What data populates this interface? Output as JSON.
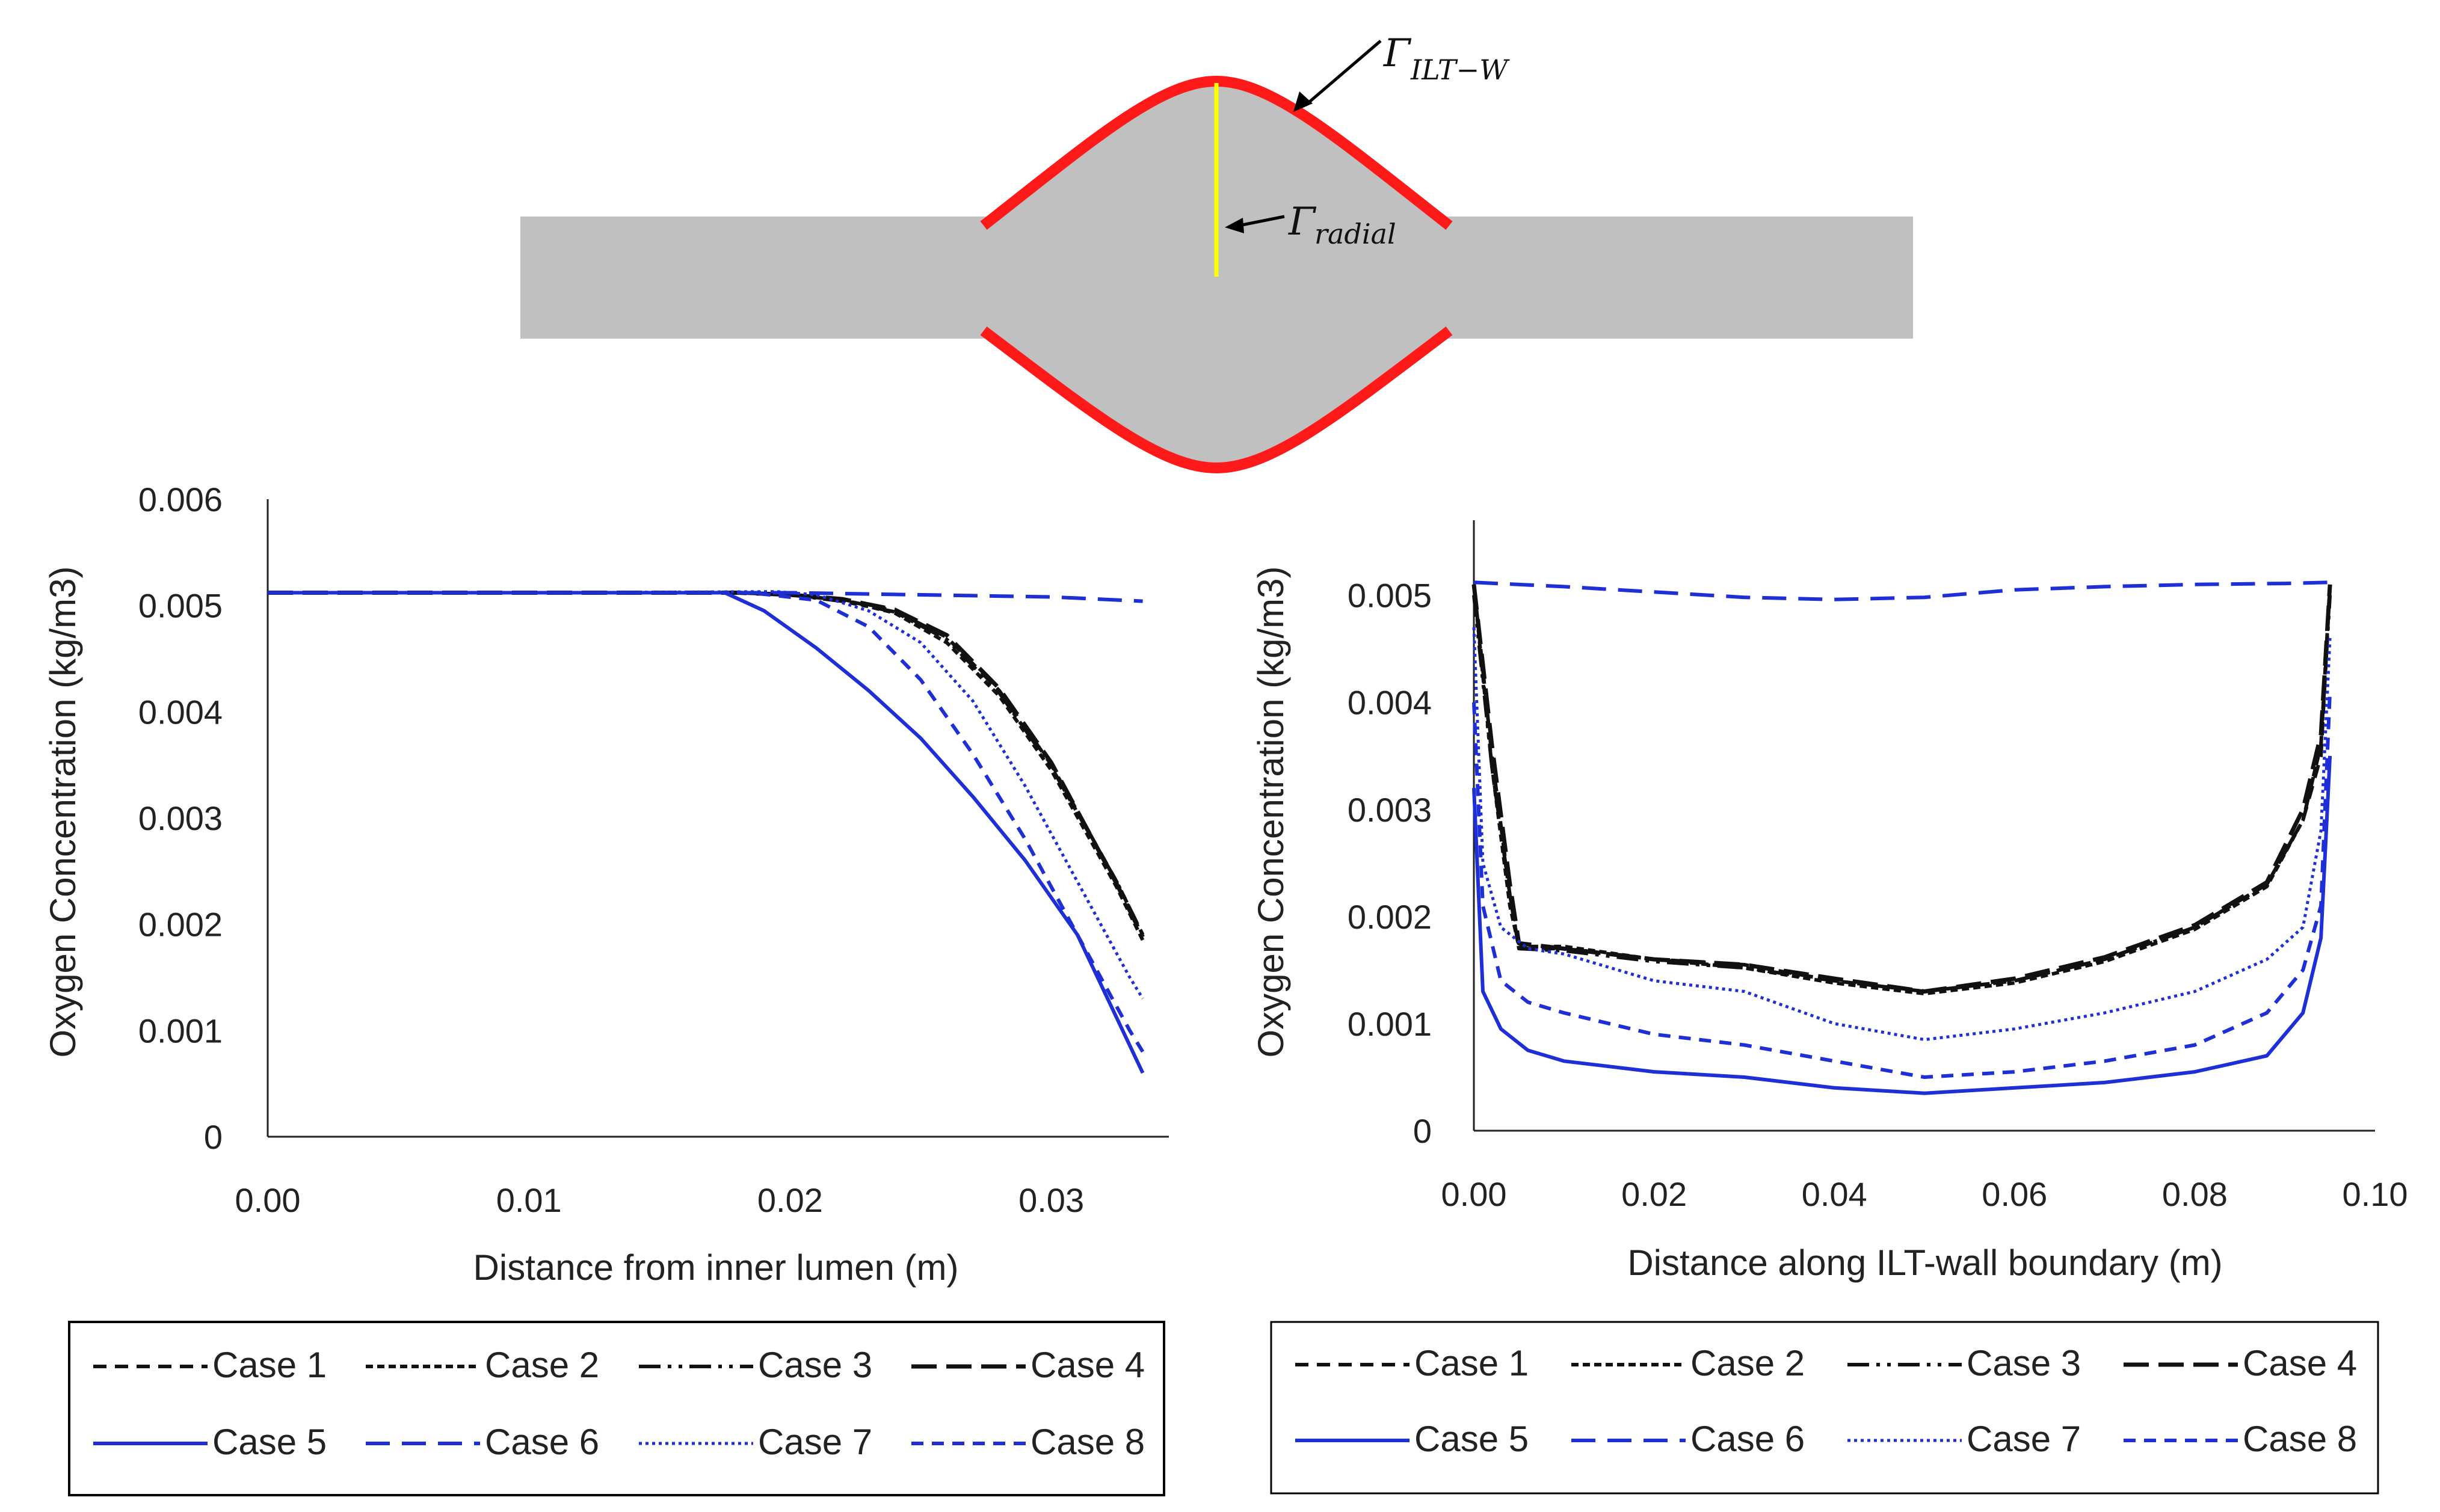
{
  "diagram": {
    "label_wall": {
      "symbol": "Γ",
      "subscript": "ILT−W"
    },
    "label_radial": {
      "symbol": "Γ",
      "subscript": "radial"
    },
    "colors": {
      "body": "#c0c0c0",
      "wall": "#ff1a1a",
      "radial": "#ffff00"
    }
  },
  "chart_data": [
    {
      "type": "line",
      "title": "",
      "xlabel": "Distance from inner lumen (m)",
      "ylabel": "Oxygen Concentration (kg/m3)",
      "xlim": [
        0,
        0.0345
      ],
      "ylim": [
        0,
        0.006
      ],
      "xticks": [
        "0.00",
        "0.01",
        "0.02",
        "0.03"
      ],
      "xtick_values": [
        0,
        0.01,
        0.02,
        0.03
      ],
      "yticks": [
        "0",
        "0.001",
        "0.002",
        "0.003",
        "0.004",
        "0.005",
        "0.006"
      ],
      "ytick_values": [
        0,
        0.001,
        0.002,
        0.003,
        0.004,
        0.005,
        0.006
      ],
      "series": [
        {
          "name": "Case 1",
          "x": [
            0,
            0.01,
            0.018,
            0.02,
            0.022,
            0.024,
            0.026,
            0.028,
            0.03,
            0.0325,
            0.0335
          ],
          "values": [
            0.00512,
            0.00512,
            0.00512,
            0.0051,
            0.00505,
            0.00495,
            0.0047,
            0.0042,
            0.0035,
            0.0024,
            0.0019
          ]
        },
        {
          "name": "Case 2",
          "x": [
            0,
            0.01,
            0.018,
            0.02,
            0.022,
            0.024,
            0.026,
            0.028,
            0.03,
            0.0325,
            0.0335
          ],
          "values": [
            0.00512,
            0.00512,
            0.00512,
            0.0051,
            0.00505,
            0.00493,
            0.00465,
            0.00415,
            0.00345,
            0.00235,
            0.00185
          ]
        },
        {
          "name": "Case 3",
          "x": [
            0,
            0.01,
            0.018,
            0.02,
            0.022,
            0.024,
            0.026,
            0.028,
            0.03,
            0.0325,
            0.0335
          ],
          "values": [
            0.00512,
            0.00512,
            0.00512,
            0.0051,
            0.00504,
            0.00494,
            0.00468,
            0.00418,
            0.00348,
            0.0024,
            0.0019
          ]
        },
        {
          "name": "Case 4",
          "x": [
            0,
            0.01,
            0.018,
            0.02,
            0.022,
            0.024,
            0.026,
            0.028,
            0.03,
            0.0325,
            0.0335
          ],
          "values": [
            0.00512,
            0.00512,
            0.00512,
            0.0051,
            0.00506,
            0.00496,
            0.00472,
            0.00422,
            0.00352,
            0.00238,
            0.00188
          ]
        },
        {
          "name": "Case 5",
          "x": [
            0,
            0.01,
            0.0175,
            0.019,
            0.021,
            0.023,
            0.025,
            0.027,
            0.029,
            0.031,
            0.0335
          ],
          "values": [
            0.00512,
            0.00512,
            0.00512,
            0.00495,
            0.0046,
            0.0042,
            0.00375,
            0.0032,
            0.0026,
            0.0019,
            0.0006
          ]
        },
        {
          "name": "Case 6",
          "x": [
            0,
            0.01,
            0.02,
            0.03,
            0.0335
          ],
          "values": [
            0.00512,
            0.00512,
            0.00512,
            0.00508,
            0.00504
          ]
        },
        {
          "name": "Case 7",
          "x": [
            0,
            0.01,
            0.0195,
            0.021,
            0.023,
            0.025,
            0.027,
            0.029,
            0.031,
            0.033,
            0.0335
          ],
          "values": [
            0.00512,
            0.00512,
            0.00513,
            0.0051,
            0.00495,
            0.00465,
            0.0041,
            0.0033,
            0.0024,
            0.0015,
            0.0013
          ]
        },
        {
          "name": "Case 8",
          "x": [
            0,
            0.01,
            0.0185,
            0.021,
            0.023,
            0.025,
            0.027,
            0.029,
            0.031,
            0.033,
            0.0335
          ],
          "values": [
            0.00512,
            0.00512,
            0.00512,
            0.00505,
            0.0048,
            0.0043,
            0.0036,
            0.0028,
            0.0019,
            0.001,
            0.0008
          ]
        }
      ],
      "legend": {
        "position": "bottom",
        "entries": [
          "Case 1",
          "Case 2",
          "Case 3",
          "Case 4",
          "Case 5",
          "Case 6",
          "Case 7",
          "Case 8"
        ]
      }
    },
    {
      "type": "line",
      "title": "",
      "xlabel": "Distance along ILT-wall boundary (m)",
      "ylabel": "Oxygen Concentration (kg/m3)",
      "xlim": [
        0,
        0.1
      ],
      "ylim": [
        0,
        0.0057
      ],
      "xticks": [
        "0.00",
        "0.02",
        "0.04",
        "0.06",
        "0.08",
        "0.10"
      ],
      "xtick_values": [
        0,
        0.02,
        0.04,
        0.06,
        0.08,
        0.1
      ],
      "yticks": [
        "0",
        "0.001",
        "0.002",
        "0.003",
        "0.004",
        "0.005"
      ],
      "ytick_values": [
        0,
        0.001,
        0.002,
        0.003,
        0.004,
        0.005
      ],
      "series": [
        {
          "name": "Case 1",
          "x": [
            0,
            0.002,
            0.004,
            0.005,
            0.01,
            0.02,
            0.03,
            0.04,
            0.05,
            0.06,
            0.07,
            0.08,
            0.088,
            0.092,
            0.094,
            0.095
          ],
          "values": [
            0.0051,
            0.0035,
            0.0022,
            0.0017,
            0.0017,
            0.0016,
            0.00155,
            0.0014,
            0.0013,
            0.0014,
            0.0016,
            0.0019,
            0.0023,
            0.0029,
            0.0035,
            0.0051
          ]
        },
        {
          "name": "Case 2",
          "x": [
            0,
            0.002,
            0.004,
            0.005,
            0.01,
            0.02,
            0.03,
            0.04,
            0.05,
            0.06,
            0.07,
            0.08,
            0.088,
            0.092,
            0.094,
            0.095
          ],
          "values": [
            0.0051,
            0.0034,
            0.0021,
            0.00172,
            0.00172,
            0.0016,
            0.00152,
            0.00138,
            0.00128,
            0.00138,
            0.00158,
            0.00188,
            0.00228,
            0.0029,
            0.0036,
            0.0051
          ]
        },
        {
          "name": "Case 3",
          "x": [
            0,
            0.002,
            0.004,
            0.005,
            0.01,
            0.02,
            0.03,
            0.04,
            0.05,
            0.06,
            0.07,
            0.08,
            0.088,
            0.092,
            0.094,
            0.095
          ],
          "values": [
            0.005,
            0.0034,
            0.0022,
            0.0017,
            0.00168,
            0.00158,
            0.00152,
            0.0014,
            0.0013,
            0.0014,
            0.0016,
            0.0019,
            0.0023,
            0.0029,
            0.0036,
            0.005
          ]
        },
        {
          "name": "Case 4",
          "x": [
            0,
            0.002,
            0.004,
            0.005,
            0.01,
            0.02,
            0.03,
            0.04,
            0.05,
            0.06,
            0.07,
            0.08,
            0.088,
            0.092,
            0.094,
            0.095
          ],
          "values": [
            0.0051,
            0.0036,
            0.0023,
            0.00175,
            0.0017,
            0.0016,
            0.00155,
            0.00142,
            0.0013,
            0.00142,
            0.00162,
            0.00192,
            0.00232,
            0.003,
            0.0037,
            0.0051
          ]
        },
        {
          "name": "Case 5",
          "x": [
            0,
            0.001,
            0.003,
            0.006,
            0.01,
            0.02,
            0.03,
            0.04,
            0.05,
            0.06,
            0.07,
            0.08,
            0.088,
            0.092,
            0.094,
            0.095
          ],
          "values": [
            0.0032,
            0.0013,
            0.00095,
            0.00075,
            0.00065,
            0.00055,
            0.0005,
            0.0004,
            0.00035,
            0.0004,
            0.00045,
            0.00055,
            0.0007,
            0.0011,
            0.0018,
            0.0035
          ]
        },
        {
          "name": "Case 6",
          "x": [
            0,
            0.01,
            0.02,
            0.03,
            0.04,
            0.05,
            0.06,
            0.07,
            0.08,
            0.09,
            0.095
          ],
          "values": [
            0.00512,
            0.00508,
            0.00503,
            0.00498,
            0.00496,
            0.00498,
            0.00505,
            0.00508,
            0.0051,
            0.00511,
            0.00512
          ]
        },
        {
          "name": "Case 7",
          "x": [
            0,
            0.001,
            0.003,
            0.006,
            0.01,
            0.02,
            0.03,
            0.04,
            0.05,
            0.06,
            0.07,
            0.08,
            0.088,
            0.092,
            0.094,
            0.095
          ],
          "values": [
            0.0047,
            0.0025,
            0.0019,
            0.0017,
            0.00165,
            0.0014,
            0.0013,
            0.001,
            0.00085,
            0.00095,
            0.0011,
            0.0013,
            0.0016,
            0.0019,
            0.0028,
            0.0046
          ]
        },
        {
          "name": "Case 8",
          "x": [
            0,
            0.001,
            0.003,
            0.006,
            0.01,
            0.02,
            0.03,
            0.04,
            0.05,
            0.06,
            0.07,
            0.08,
            0.088,
            0.092,
            0.094,
            0.095
          ],
          "values": [
            0.004,
            0.0021,
            0.0014,
            0.0012,
            0.0011,
            0.0009,
            0.0008,
            0.00065,
            0.0005,
            0.00055,
            0.00065,
            0.0008,
            0.0011,
            0.0015,
            0.0021,
            0.0041
          ]
        }
      ],
      "legend": {
        "position": "bottom",
        "entries": [
          "Case 1",
          "Case 2",
          "Case 3",
          "Case 4",
          "Case 5",
          "Case 6",
          "Case 7",
          "Case 8"
        ]
      }
    }
  ],
  "series_styles": {
    "Case 1": {
      "color": "#111111",
      "dash": "22,14",
      "width": 6
    },
    "Case 2": {
      "color": "#111111",
      "dash": "12,7",
      "width": 6
    },
    "Case 3": {
      "color": "#111111",
      "dash": "36,12,6,12,6,12",
      "width": 6
    },
    "Case 4": {
      "color": "#111111",
      "dash": "42,16",
      "width": 7
    },
    "Case 5": {
      "color": "#1f2fd6",
      "dash": "",
      "width": 6
    },
    "Case 6": {
      "color": "#1f2fd6",
      "dash": "40,20",
      "width": 6
    },
    "Case 7": {
      "color": "#1f2fd6",
      "dash": "5,6",
      "width": 5
    },
    "Case 8": {
      "color": "#1f2fd6",
      "dash": "20,14",
      "width": 6
    }
  }
}
